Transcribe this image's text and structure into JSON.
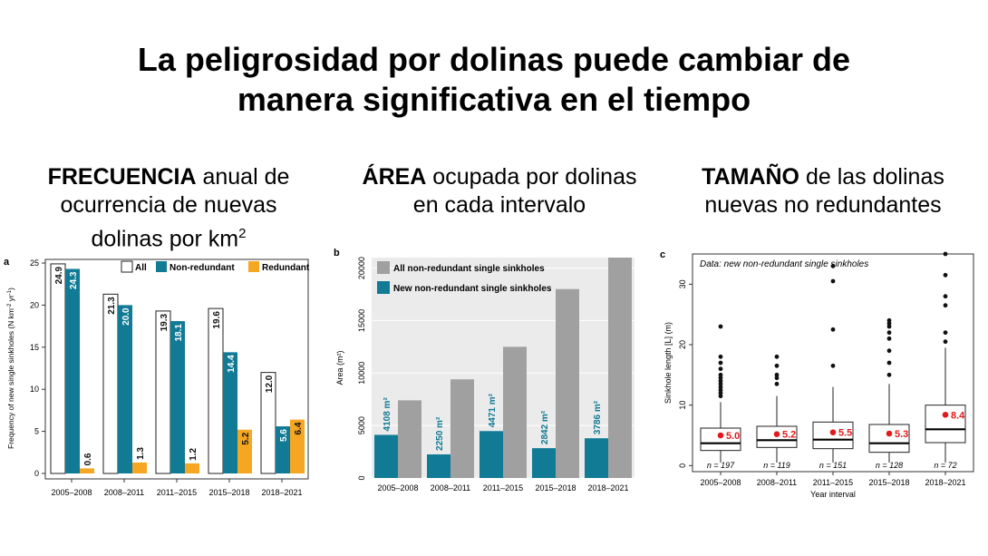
{
  "title": {
    "line1": "La peligrosidad por dolinas puede cambiar de",
    "line2": "manera significativa en el tiempo"
  },
  "subtitles": {
    "frequency": {
      "bold": "FRECUENCIA",
      "rest": " anual de ocurrencia de nuevas dolinas por km",
      "sup": "2"
    },
    "area": {
      "bold": "ÁREA",
      "rest": " ocupada por dolinas en cada intervalo"
    },
    "size": {
      "bold": "TAMAÑO",
      "rest": " de las dolinas nuevas no redundantes"
    }
  },
  "colors": {
    "all": "#ffffff",
    "nonredundant": "#117a95",
    "redundant": "#f5a623",
    "gray": "#a0a0a0",
    "red": "#e31a1c"
  },
  "chart_data": [
    {
      "type": "bar",
      "panel_label": "a",
      "title": "",
      "xlabel": "",
      "ylabel": "Frequency of new single sinkholes (N km",
      "ylabel_sup1": "-2",
      "ylabel_mid": " yr",
      "ylabel_sup2": "-1",
      "ylabel_end": ")",
      "ylim": [
        0,
        25
      ],
      "yticks": [
        0,
        5,
        10,
        15,
        20,
        25
      ],
      "categories": [
        "2005–2008",
        "2008–2011",
        "2011–2015",
        "2015–2018",
        "2018–2021"
      ],
      "series": [
        {
          "name": "All",
          "values": [
            24.9,
            21.3,
            19.3,
            19.6,
            12.0
          ],
          "labels": [
            "24.9",
            "21.3",
            "19.3",
            "19.6",
            "12.0"
          ]
        },
        {
          "name": "Non-redundant",
          "values": [
            24.3,
            20.0,
            18.1,
            14.4,
            5.6
          ],
          "labels": [
            "24.3",
            "20.0",
            "18.1",
            "14.4",
            "5.6"
          ]
        },
        {
          "name": "Redundant",
          "values": [
            0.6,
            1.3,
            1.2,
            5.2,
            6.4
          ],
          "labels": [
            "0.6",
            "1.3",
            "1.2",
            "5.2",
            "6.4"
          ]
        }
      ],
      "legend_position": "top-right"
    },
    {
      "type": "bar",
      "panel_label": "b",
      "title": "",
      "xlabel": "",
      "ylabel": "Area (m²)",
      "ylim": [
        0,
        21000
      ],
      "yticks": [
        0,
        5000,
        10000,
        15000,
        20000
      ],
      "categories": [
        "2005–2008",
        "2008–2011",
        "2011–2015",
        "2015–2018",
        "2018–2021"
      ],
      "series": [
        {
          "name": "New non-redundant single sinkholes",
          "values": [
            4108,
            2250,
            4471,
            2842,
            3786
          ],
          "labels": [
            "4108 m²",
            "2250 m²",
            "4471 m²",
            "2842 m²",
            "3786 m²"
          ]
        },
        {
          "name": "All non-redundant single sinkholes",
          "values": [
            7400,
            9400,
            12500,
            18000,
            21000
          ]
        }
      ],
      "legend_position": "top-left"
    },
    {
      "type": "box",
      "panel_label": "c",
      "title": "",
      "annotation": "Data: new non-redundant single sinkholes",
      "xlabel": "Year interval",
      "ylabel": "Sinkhole length [L] (m)",
      "ylim": [
        -1,
        35
      ],
      "yticks": [
        0,
        10,
        20,
        30
      ],
      "categories": [
        "2005–2008",
        "2008–2011",
        "2011–2015",
        "2015–2018",
        "2018–2021"
      ],
      "boxes": [
        {
          "q1": 2.5,
          "median": 3.7,
          "q3": 6.2,
          "whisker_low": 0.5,
          "whisker_high": 10.5,
          "mean": 5.0,
          "mean_label": "5.0",
          "n_label": "n = 197",
          "outliers": [
            11.5,
            12,
            12.5,
            13,
            13.5,
            14,
            14.5,
            15,
            16,
            17,
            18,
            23
          ]
        },
        {
          "q1": 3.0,
          "median": 4.2,
          "q3": 6.5,
          "whisker_low": 0.5,
          "whisker_high": 11.5,
          "mean": 5.2,
          "mean_label": "5.2",
          "n_label": "n = 119",
          "outliers": [
            13.5,
            14.5,
            15,
            16.5,
            18
          ]
        },
        {
          "q1": 2.8,
          "median": 4.3,
          "q3": 7.2,
          "whisker_low": 0.5,
          "whisker_high": 13.0,
          "mean": 5.5,
          "mean_label": "5.5",
          "n_label": "n = 151",
          "outliers": [
            16.5,
            22.5,
            30.5,
            33
          ]
        },
        {
          "q1": 2.2,
          "median": 3.7,
          "q3": 6.8,
          "whisker_low": 0.5,
          "whisker_high": 13.5,
          "mean": 5.3,
          "mean_label": "5.3",
          "n_label": "n = 128",
          "outliers": [
            15,
            17,
            19,
            21,
            22,
            23,
            23.5,
            24
          ]
        },
        {
          "q1": 3.8,
          "median": 6.0,
          "q3": 10.0,
          "whisker_low": 0.5,
          "whisker_high": 19.5,
          "mean": 8.4,
          "mean_label": "8.4",
          "n_label": "n = 72",
          "outliers": [
            20.5,
            22,
            26.5,
            28,
            31.5,
            35
          ]
        }
      ]
    }
  ]
}
